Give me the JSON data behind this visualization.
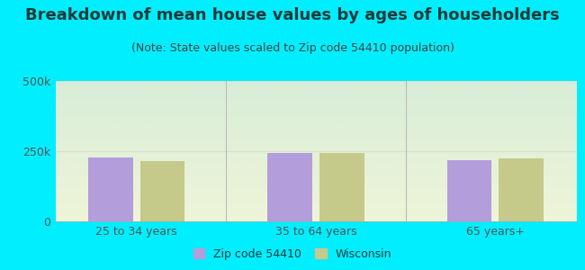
{
  "title": "Breakdown of mean house values by ages of householders",
  "subtitle": "(Note: State values scaled to Zip code 54410 population)",
  "categories": [
    "25 to 34 years",
    "35 to 64 years",
    "65 years+"
  ],
  "zip_values": [
    228000,
    245000,
    218000
  ],
  "state_values": [
    215000,
    242000,
    225000
  ],
  "ylim": [
    0,
    500000
  ],
  "ytick_labels": [
    "0",
    "250k",
    "500k"
  ],
  "zip_color": "#b39ddb",
  "state_color": "#c5c98a",
  "outer_bg": "#00eeff",
  "plot_bg_top_left": "#dff0e0",
  "plot_bg_bottom_right": "#f0f8e0",
  "legend_zip_label": "Zip code 54410",
  "legend_state_label": "Wisconsin",
  "title_fontsize": 13,
  "subtitle_fontsize": 9,
  "title_color": "#1a3a3a",
  "subtitle_color": "#444444",
  "tick_label_color": "#555555",
  "bar_width": 0.25,
  "grid_color": "#ddddcc",
  "divider_color": "#bbbbbb"
}
